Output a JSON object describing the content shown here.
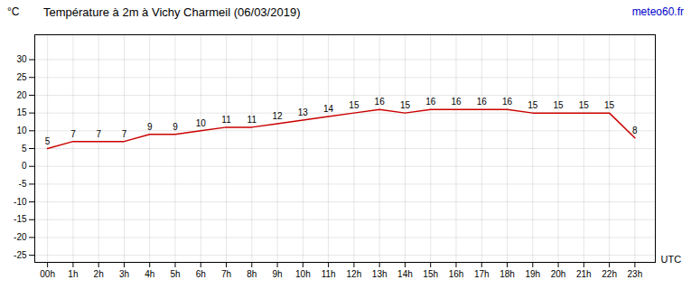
{
  "chart_data": {
    "type": "line",
    "title": "Température à 2m à Vichy Charmeil (06/03/2019)",
    "y_label": "°C",
    "x_label": "UTC",
    "annotations": [
      {
        "text": "meteo60.fr",
        "color": "#0000cc"
      }
    ],
    "x": [
      0,
      1,
      2,
      3,
      4,
      5,
      6,
      7,
      8,
      9,
      10,
      11,
      12,
      13,
      14,
      15,
      16,
      17,
      18,
      19,
      20,
      21,
      22,
      23
    ],
    "values": [
      5,
      7,
      7,
      7,
      9,
      9,
      10,
      11,
      11,
      12,
      13,
      14,
      15,
      16,
      15,
      16,
      16,
      16,
      16,
      15,
      15,
      15,
      15,
      8
    ],
    "color": "#cc0000",
    "xlim": [
      -0.5,
      23.8
    ],
    "xticks": [
      {
        "value": 0,
        "label": "00h"
      },
      {
        "value": 1,
        "label": "1h"
      },
      {
        "value": 2,
        "label": "2h"
      },
      {
        "value": 3,
        "label": "3h"
      },
      {
        "value": 4,
        "label": "4h"
      },
      {
        "value": 5,
        "label": "5h"
      },
      {
        "value": 6,
        "label": "6h"
      },
      {
        "value": 7,
        "label": "7h"
      },
      {
        "value": 8,
        "label": "8h"
      },
      {
        "value": 9,
        "label": "9h"
      },
      {
        "value": 10,
        "label": "10h"
      },
      {
        "value": 11,
        "label": "11h"
      },
      {
        "value": 12,
        "label": "12h"
      },
      {
        "value": 13,
        "label": "13h"
      },
      {
        "value": 14,
        "label": "14h"
      },
      {
        "value": 15,
        "label": "15h"
      },
      {
        "value": 16,
        "label": "16h"
      },
      {
        "value": 17,
        "label": "17h"
      },
      {
        "value": 18,
        "label": "18h"
      },
      {
        "value": 19,
        "label": "19h"
      },
      {
        "value": 20,
        "label": "20h"
      },
      {
        "value": 21,
        "label": "21h"
      },
      {
        "value": 22,
        "label": "22h"
      },
      {
        "value": 23,
        "label": "23h"
      }
    ],
    "ylim": [
      -27,
      37
    ],
    "yticks": [
      -25,
      -20,
      -15,
      -10,
      -5,
      0,
      5,
      10,
      15,
      20,
      25,
      30
    ],
    "grid": true,
    "data_labels": true
  }
}
